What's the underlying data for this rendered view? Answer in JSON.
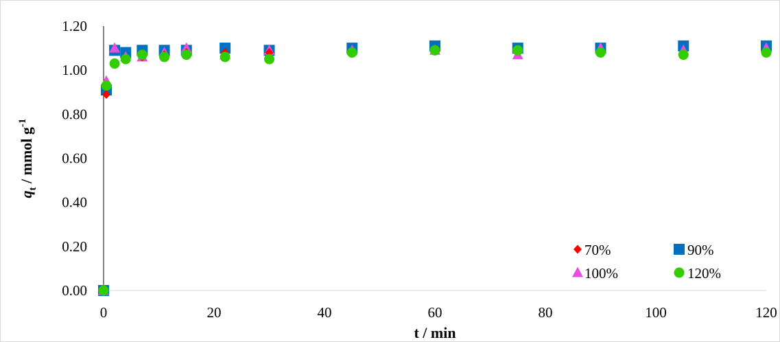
{
  "chart_data": {
    "type": "scatter",
    "title": "",
    "xlabel": "t / min",
    "ylabel_main": "q",
    "ylabel_sub": "t",
    "ylabel_rest": " / mmol g",
    "ylabel_sup": "-1",
    "xlim": [
      0,
      120
    ],
    "ylim": [
      0,
      1.2
    ],
    "xticks": [
      "0",
      "20",
      "40",
      "60",
      "80",
      "100",
      "120"
    ],
    "yticks": [
      "0.00",
      "0.20",
      "0.40",
      "0.60",
      "0.80",
      "1.00",
      "1.20"
    ],
    "grid": false,
    "legend_position": "bottom-right",
    "series": [
      {
        "name": "70%",
        "marker": "diamond",
        "color": "#ff0000",
        "x": [
          0,
          0.5,
          2,
          4,
          7,
          11,
          15,
          22,
          30,
          45,
          60,
          75,
          90,
          105,
          120
        ],
        "y": [
          0.0,
          0.89,
          1.03,
          1.05,
          1.06,
          1.07,
          1.08,
          1.08,
          1.08,
          1.08,
          1.09,
          1.09,
          1.08,
          1.07,
          1.08
        ]
      },
      {
        "name": "90%",
        "marker": "square",
        "color": "#0070c0",
        "x": [
          0,
          0.5,
          2,
          4,
          7,
          11,
          15,
          22,
          30,
          45,
          60,
          75,
          90,
          105,
          120
        ],
        "y": [
          0.0,
          0.91,
          1.09,
          1.08,
          1.09,
          1.09,
          1.09,
          1.1,
          1.09,
          1.1,
          1.11,
          1.1,
          1.1,
          1.11,
          1.11
        ]
      },
      {
        "name": "100%",
        "marker": "triangle",
        "color": "#e84ee0",
        "x": [
          0,
          0.5,
          2,
          4,
          7,
          11,
          15,
          22,
          30,
          45,
          60,
          75,
          90,
          105,
          120
        ],
        "y": [
          0.0,
          0.95,
          1.1,
          1.06,
          1.06,
          1.08,
          1.1,
          1.07,
          1.09,
          1.09,
          1.09,
          1.07,
          1.1,
          1.09,
          1.1
        ]
      },
      {
        "name": "120%",
        "marker": "circle",
        "color": "#33cc00",
        "x": [
          0,
          0.5,
          2,
          4,
          7,
          11,
          15,
          22,
          30,
          45,
          60,
          75,
          90,
          105,
          120
        ],
        "y": [
          0.0,
          0.93,
          1.03,
          1.05,
          1.07,
          1.06,
          1.07,
          1.06,
          1.05,
          1.08,
          1.09,
          1.09,
          1.08,
          1.07,
          1.08
        ]
      }
    ]
  }
}
